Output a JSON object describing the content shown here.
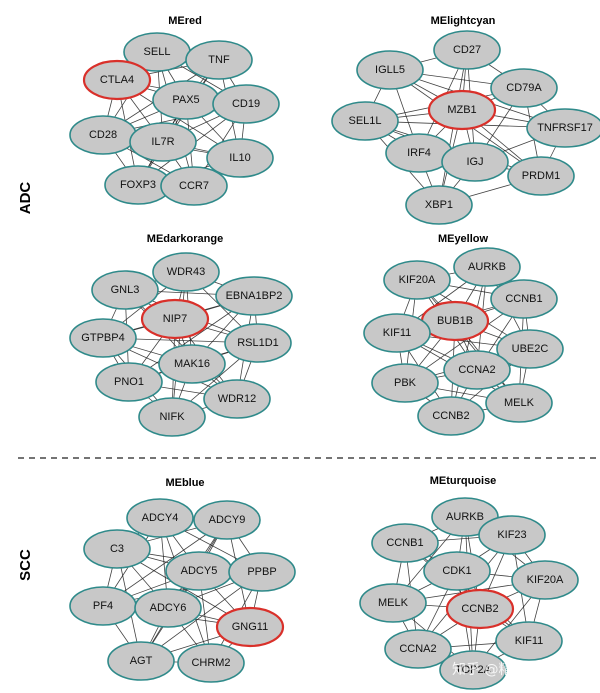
{
  "groups": [
    {
      "label": "ADC"
    },
    {
      "label": "SCC"
    }
  ],
  "modules": [
    {
      "title": "MEred",
      "hub": "CTLA4",
      "nodes": [
        "SELL",
        "TNF",
        "CTLA4",
        "PAX5",
        "CD19",
        "CD28",
        "IL7R",
        "IL10",
        "FOXP3",
        "CCR7"
      ]
    },
    {
      "title": "MElightcyan",
      "hub": "MZB1",
      "nodes": [
        "CD27",
        "IGLL5",
        "CD79A",
        "MZB1",
        "SEL1L",
        "TNFRSF17",
        "IRF4",
        "IGJ",
        "PRDM1",
        "XBP1"
      ]
    },
    {
      "title": "MEdarkorange",
      "hub": "NIP7",
      "nodes": [
        "WDR43",
        "GNL3",
        "EBNA1BP2",
        "NIP7",
        "GTPBP4",
        "RSL1D1",
        "MAK16",
        "PNO1",
        "WDR12",
        "NIFK"
      ]
    },
    {
      "title": "MEyellow",
      "hub": "BUB1B",
      "nodes": [
        "AURKB",
        "KIF20A",
        "CCNB1",
        "BUB1B",
        "KIF11",
        "UBE2C",
        "CCNA2",
        "PBK",
        "MELK",
        "CCNB2"
      ]
    },
    {
      "title": "MEblue",
      "hub": "GNG11",
      "nodes": [
        "ADCY4",
        "ADCY9",
        "C3",
        "ADCY5",
        "PPBP",
        "PF4",
        "ADCY6",
        "GNG11",
        "AGT",
        "CHRM2"
      ]
    },
    {
      "title": "MEturquoise",
      "hub": "CCNB2",
      "nodes": [
        "AURKB",
        "CCNB1",
        "KIF23",
        "CDK1",
        "KIF20A",
        "MELK",
        "CCNB2",
        "CCNA2",
        "KIF11",
        "TOP2A"
      ]
    }
  ],
  "watermark": "知乎 @精准科研",
  "colors": {
    "node_fill": "#c8c8c8",
    "node_stroke": "#2f8a8a",
    "hub_stroke": "#d9302a"
  }
}
